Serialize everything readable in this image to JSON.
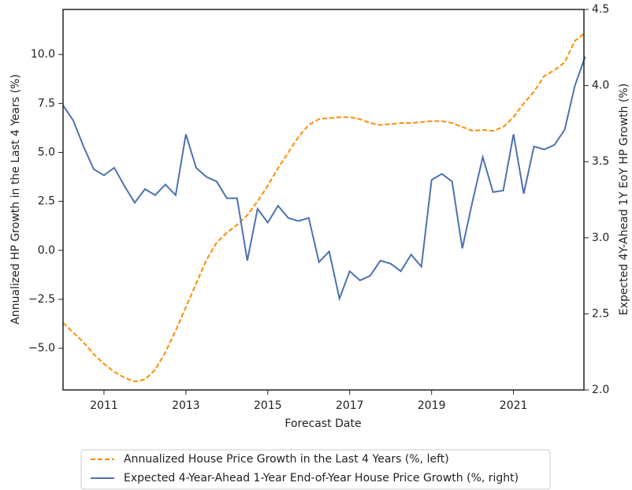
{
  "chart_data": {
    "type": "line",
    "x_label": "Forecast Date",
    "y_label": "Annualized HP Growth in the Last 4 Years (%)",
    "y2_label": "Expected 4Y-Ahead 1Y EoY HP Growth (%)",
    "x": [
      2010.0,
      2010.25,
      2010.5,
      2010.75,
      2011.0,
      2011.25,
      2011.5,
      2011.75,
      2012.0,
      2012.25,
      2012.5,
      2012.75,
      2013.0,
      2013.25,
      2013.5,
      2013.75,
      2014.0,
      2014.25,
      2014.5,
      2014.75,
      2015.0,
      2015.25,
      2015.5,
      2015.75,
      2016.0,
      2016.25,
      2016.5,
      2016.75,
      2017.0,
      2017.25,
      2017.5,
      2017.75,
      2018.0,
      2018.25,
      2018.5,
      2018.75,
      2019.0,
      2019.25,
      2019.5,
      2019.75,
      2020.0,
      2020.25,
      2020.5,
      2020.75,
      2021.0,
      2021.25,
      2021.5,
      2021.75,
      2022.0,
      2022.25,
      2022.5,
      2022.75
    ],
    "xlim": [
      2010.0,
      2022.72
    ],
    "xticks": [
      2011,
      2013,
      2015,
      2017,
      2019,
      2021
    ],
    "ylim": [
      -7.13,
      12.3
    ],
    "yticks": [
      {
        "value": -5,
        "label": "−5.0"
      },
      {
        "value": -2.5,
        "label": "−2.5"
      },
      {
        "value": 0,
        "label": "0.0"
      },
      {
        "value": 2.5,
        "label": "2.5"
      },
      {
        "value": 5,
        "label": "5.0"
      },
      {
        "value": 7.5,
        "label": "7.5"
      },
      {
        "value": 10,
        "label": "10.0"
      }
    ],
    "y2lim": [
      2.0,
      4.5
    ],
    "y2ticks": [
      {
        "value": 2,
        "label": "2.0"
      },
      {
        "value": 2.5,
        "label": "2.5"
      },
      {
        "value": 3,
        "label": "3.0"
      },
      {
        "value": 3.5,
        "label": "3.5"
      },
      {
        "value": 4,
        "label": "4.0"
      },
      {
        "value": 4.5,
        "label": "4.5"
      }
    ],
    "grid": false,
    "legend": "bottom",
    "series": [
      {
        "name": "Annualized House Price Growth in the Last 4 Years (%, left)",
        "color": "#ff8c00",
        "linestyle": "dashed",
        "axis": "y",
        "values": [
          -3.7,
          -4.2,
          -4.7,
          -5.3,
          -5.8,
          -6.2,
          -6.5,
          -6.7,
          -6.6,
          -6.1,
          -5.2,
          -4.1,
          -2.9,
          -1.7,
          -0.5,
          0.4,
          0.9,
          1.3,
          1.8,
          2.5,
          3.3,
          4.2,
          5.0,
          5.8,
          6.4,
          6.7,
          6.75,
          6.8,
          6.8,
          6.7,
          6.5,
          6.4,
          6.45,
          6.5,
          6.5,
          6.55,
          6.6,
          6.6,
          6.5,
          6.3,
          6.1,
          6.15,
          6.1,
          6.3,
          6.8,
          7.5,
          8.1,
          8.9,
          9.2,
          9.6,
          10.7,
          11.1
        ]
      },
      {
        "name": "Expected 4-Year-Ahead 1-Year End-of-Year House Price Growth (%, right)",
        "color": "#4c72b0",
        "linestyle": "solid",
        "axis": "y2",
        "values": [
          3.87,
          3.77,
          3.6,
          3.45,
          3.41,
          3.46,
          3.34,
          3.23,
          3.32,
          3.28,
          3.35,
          3.28,
          3.68,
          3.46,
          3.4,
          3.37,
          3.26,
          3.26,
          2.85,
          3.19,
          3.1,
          3.21,
          3.13,
          3.11,
          3.13,
          2.84,
          2.91,
          2.6,
          2.78,
          2.72,
          2.75,
          2.85,
          2.83,
          2.78,
          2.89,
          2.81,
          3.38,
          3.42,
          3.37,
          2.93,
          3.24,
          3.53,
          3.3,
          3.31,
          3.68,
          3.29,
          3.6,
          3.58,
          3.61,
          3.71,
          4.0,
          4.19
        ]
      }
    ]
  }
}
